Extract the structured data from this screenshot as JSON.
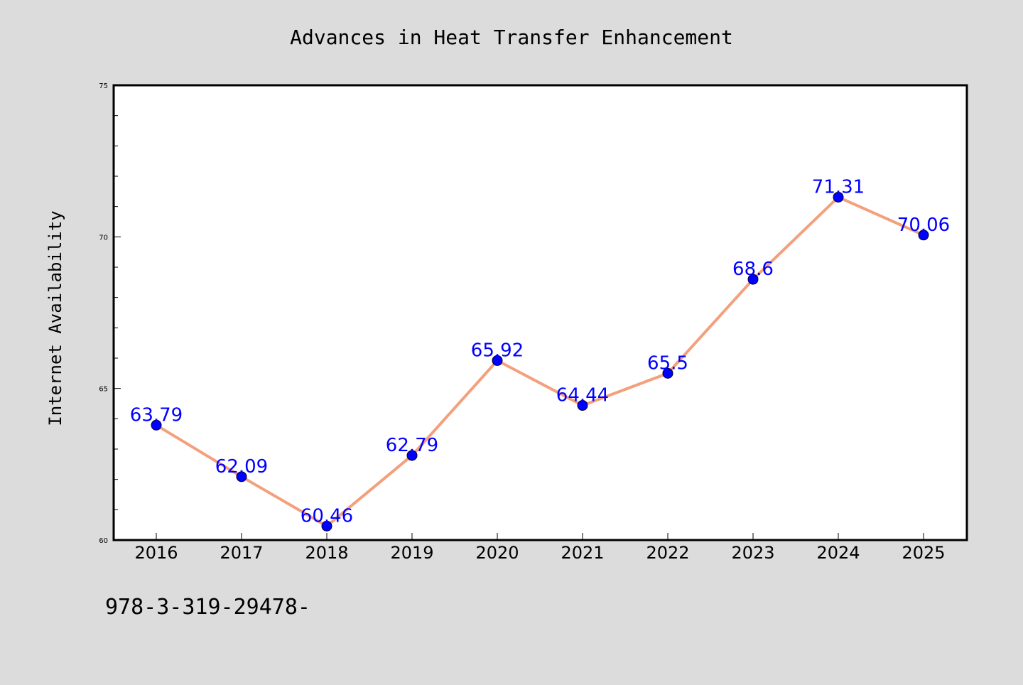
{
  "chart_data": {
    "type": "line",
    "title": "Advances in Heat Transfer Enhancement",
    "xlabel": "",
    "ylabel": "Internet Availability",
    "categories": [
      "2016",
      "2017",
      "2018",
      "2019",
      "2020",
      "2021",
      "2022",
      "2023",
      "2024",
      "2025"
    ],
    "values": [
      63.79,
      62.09,
      60.46,
      62.79,
      65.92,
      64.44,
      65.5,
      68.6,
      71.31,
      70.06
    ],
    "data_labels": [
      "63.79",
      "62.09",
      "60.46",
      "62.79",
      "65.92",
      "64.44",
      "65.5",
      "68.6",
      "71.31",
      "70.06"
    ],
    "ylim": [
      60,
      75
    ],
    "yticks": [
      "60",
      "65",
      "70",
      "75"
    ],
    "grid": false,
    "colors": {
      "line": "#f4a07c",
      "marker": "#0000ff",
      "label": "#0000ff",
      "background": "#dcdcdc",
      "plot_bg": "#ffffff"
    }
  },
  "footer_text": "978-3-319-29478-"
}
